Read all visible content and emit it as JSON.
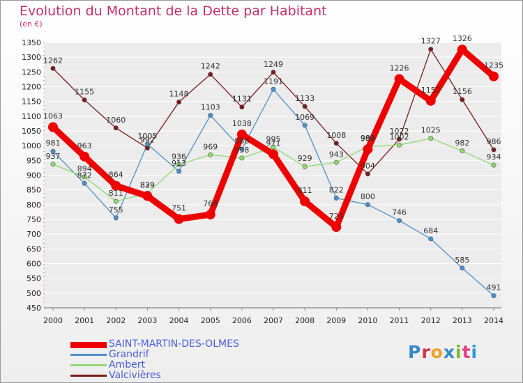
{
  "title": "Evolution du Montant de la Dette par Habitant",
  "subtitle": "(en €)",
  "logo": "Proxiti",
  "logo_colors": [
    "#3a87c8",
    "#d8304a",
    "#f0a020",
    "#3a87c8",
    "#7ab82e",
    "#e83a8a",
    "#2a9ad8"
  ],
  "chart_data": {
    "type": "line",
    "title": "Evolution du Montant de la Dette par Habitant",
    "ylabel": "(en €)",
    "xlabel": "",
    "x": [
      2000,
      2001,
      2002,
      2003,
      2004,
      2005,
      2006,
      2007,
      2008,
      2009,
      2010,
      2011,
      2012,
      2013,
      2014
    ],
    "ylim": [
      450,
      1350
    ],
    "yticks": [
      450,
      500,
      550,
      600,
      650,
      700,
      750,
      800,
      850,
      900,
      950,
      1000,
      1050,
      1100,
      1150,
      1200,
      1250,
      1300,
      1350
    ],
    "grid": "horizontal",
    "legend_position": "bottom-left",
    "series": [
      {
        "name": "SAINT-MARTIN-DES-OLMES",
        "color": "#ee0000",
        "emphasis": true,
        "values": [
          1063,
          963,
          864,
          829,
          751,
          766,
          1038,
          971,
          811,
          724,
          988,
          1226,
          1152,
          1326,
          1235
        ]
      },
      {
        "name": "Grandrif",
        "color": "#4b90cc",
        "values": [
          981,
          872,
          755,
          1005,
          913,
          1103,
          988,
          1191,
          1069,
          822,
          800,
          746,
          684,
          585,
          491
        ]
      },
      {
        "name": "Ambert",
        "color": "#90d870",
        "values": [
          937,
          894,
          811,
          839,
          936,
          969,
          958,
          995,
          929,
          943,
          997,
          1002,
          1025,
          982,
          934
        ]
      },
      {
        "name": "Valcivières",
        "color": "#7a1a1a",
        "values": [
          1262,
          1155,
          1060,
          992,
          1148,
          1242,
          1131,
          1249,
          1133,
          1008,
          904,
          1022,
          1327,
          1156,
          986
        ]
      }
    ]
  }
}
